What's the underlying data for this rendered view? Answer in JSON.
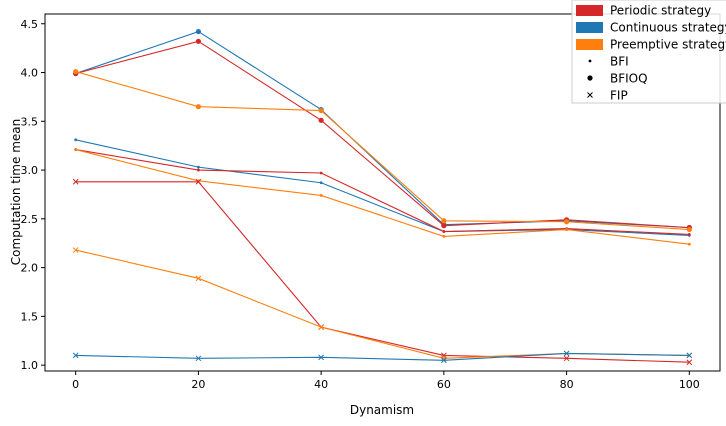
{
  "chart_data": {
    "type": "line",
    "xlabel": "Dynamism",
    "ylabel": "Computation time mean",
    "x": [
      0,
      20,
      40,
      60,
      80,
      100
    ],
    "xlim": [
      -5,
      105
    ],
    "ylim": [
      0.94,
      4.6
    ],
    "xticks": [
      "0",
      "20",
      "40",
      "60",
      "80",
      "100"
    ],
    "yticks": [
      "1.0",
      "1.5",
      "2.0",
      "2.5",
      "3.0",
      "3.5",
      "4.0",
      "4.5"
    ],
    "grid": false,
    "legend_position": "top-right",
    "legend": {
      "strategies": [
        {
          "label": "Periodic strategy",
          "color": "#d62728"
        },
        {
          "label": "Continuous strategy",
          "color": "#1f77b4"
        },
        {
          "label": "Preemptive strategy",
          "color": "#ff7f0e"
        }
      ],
      "markers": [
        {
          "label": "BFI",
          "marker": "point"
        },
        {
          "label": "BFIOQ",
          "marker": "circle"
        },
        {
          "label": "FIP",
          "marker": "x"
        }
      ]
    },
    "series": [
      {
        "strategy": "Continuous strategy",
        "method": "BFIOQ",
        "color": "#1f77b4",
        "marker": "circle",
        "values": [
          3.99,
          4.42,
          3.62,
          2.44,
          2.48,
          2.41
        ]
      },
      {
        "strategy": "Periodic strategy",
        "method": "BFIOQ",
        "color": "#d62728",
        "marker": "circle",
        "values": [
          3.99,
          4.32,
          3.51,
          2.43,
          2.49,
          2.41
        ]
      },
      {
        "strategy": "Preemptive strategy",
        "method": "BFIOQ",
        "color": "#ff7f0e",
        "marker": "circle",
        "values": [
          4.01,
          3.65,
          3.61,
          2.48,
          2.47,
          2.39
        ]
      },
      {
        "strategy": "Continuous strategy",
        "method": "BFI",
        "color": "#1f77b4",
        "marker": "point",
        "values": [
          3.31,
          3.03,
          2.87,
          2.37,
          2.39,
          2.33
        ]
      },
      {
        "strategy": "Periodic strategy",
        "method": "BFI",
        "color": "#d62728",
        "marker": "point",
        "values": [
          3.21,
          3.0,
          2.97,
          2.37,
          2.4,
          2.34
        ]
      },
      {
        "strategy": "Preemptive strategy",
        "method": "BFI",
        "color": "#ff7f0e",
        "marker": "point",
        "values": [
          3.21,
          2.89,
          2.74,
          2.32,
          2.39,
          2.24
        ]
      },
      {
        "strategy": "Periodic strategy",
        "method": "FIP",
        "color": "#d62728",
        "marker": "x",
        "values": [
          2.88,
          2.88,
          1.39,
          1.1,
          1.07,
          1.03
        ]
      },
      {
        "strategy": "Preemptive strategy",
        "method": "FIP",
        "color": "#ff7f0e",
        "marker": "x",
        "values": [
          2.18,
          1.89,
          1.39,
          1.07,
          1.12,
          1.1
        ]
      },
      {
        "strategy": "Continuous strategy",
        "method": "FIP",
        "color": "#1f77b4",
        "marker": "x",
        "values": [
          1.1,
          1.07,
          1.08,
          1.05,
          1.12,
          1.1
        ]
      }
    ]
  }
}
